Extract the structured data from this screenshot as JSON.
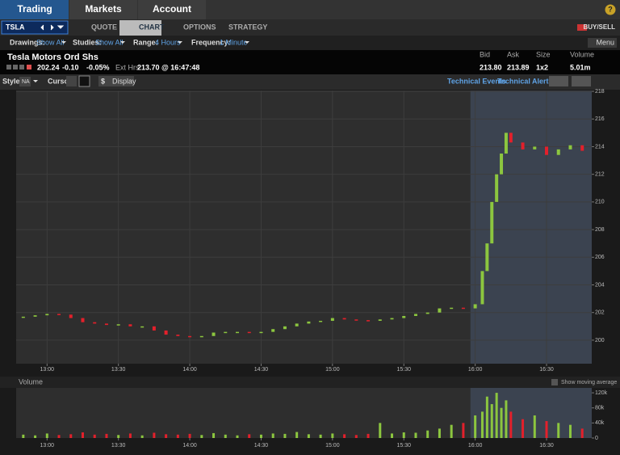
{
  "nav": {
    "tabs": [
      "Trading",
      "Markets",
      "Account"
    ],
    "help": "?"
  },
  "toolbar": {
    "symbol": "TSLA",
    "views": [
      "QUOTE",
      "CHART",
      "OPTIONS",
      "STRATEGY"
    ],
    "buy_sell": "BUY/SELL"
  },
  "settings": {
    "items": [
      {
        "label": "Drawings:",
        "value": "Show All"
      },
      {
        "label": "Studies:",
        "value": "Show All"
      },
      {
        "label": "Range:",
        "value": "4 Hours"
      },
      {
        "label": "Frequency:",
        "value": "1 Minute"
      }
    ],
    "menu": "Menu"
  },
  "quote": {
    "name": "Tesla Motors Ord Shs",
    "last": "202.24",
    "change": "-0.10",
    "change_pct": "-0.05%",
    "ext_label": "Ext Hrs",
    "ext_value": "213.70 @ 16:47:48",
    "columns": [
      "Bid",
      "Ask",
      "Size",
      "Volume"
    ],
    "values": [
      "213.80",
      "213.89",
      "1x2",
      "5.01m"
    ]
  },
  "chart_tools": {
    "style_label": "Style:",
    "style_value": "NA",
    "cursor_label": "Cursor:",
    "display_icon": "$",
    "display": "Display",
    "links": [
      "Technical Events",
      "Technical Alerts"
    ]
  },
  "chart_data": [
    {
      "type": "candlestick",
      "up_color": "#8cc63f",
      "down_color": "#e3202b",
      "grid": true,
      "shade_xlim": [
        958,
        1009
      ],
      "x": [
        770,
        775,
        780,
        785,
        790,
        795,
        800,
        805,
        810,
        815,
        820,
        825,
        830,
        835,
        840,
        845,
        850,
        855,
        860,
        865,
        870,
        875,
        880,
        885,
        890,
        895,
        900,
        905,
        910,
        915,
        920,
        925,
        930,
        935,
        940,
        945,
        950,
        955,
        960,
        963,
        965,
        967,
        969,
        971,
        973,
        975,
        980,
        985,
        990,
        995,
        1000,
        1005
      ],
      "values": [
        201.7,
        201.8,
        201.9,
        201.85,
        201.6,
        201.3,
        201.2,
        201.1,
        201.15,
        201.0,
        201.0,
        200.7,
        200.4,
        200.3,
        200.25,
        200.3,
        200.55,
        200.6,
        200.6,
        200.55,
        200.6,
        200.8,
        201.0,
        201.2,
        201.35,
        201.4,
        201.6,
        201.5,
        201.45,
        201.4,
        201.5,
        201.6,
        201.75,
        201.9,
        202.0,
        202.3,
        202.35,
        202.3,
        202.6,
        205,
        207,
        210,
        212,
        213.5,
        215,
        214.3,
        213.8,
        214.0,
        213.4,
        213.8,
        214.1,
        213.7
      ],
      "xlim": [
        767,
        1009
      ],
      "ylim": [
        198.3,
        218.06
      ],
      "yticks": [
        200,
        202,
        204,
        206,
        208,
        210,
        212,
        214,
        216,
        218
      ],
      "xticks": [
        {
          "value": 780,
          "label": "13:00"
        },
        {
          "value": 810,
          "label": "13:30"
        },
        {
          "value": 840,
          "label": "14:00"
        },
        {
          "value": 870,
          "label": "14:30"
        },
        {
          "value": 900,
          "label": "15:00"
        },
        {
          "value": 930,
          "label": "15:30"
        },
        {
          "value": 960,
          "label": "16:00"
        },
        {
          "value": 990,
          "label": "16:30"
        }
      ]
    },
    {
      "type": "bar",
      "title": "Volume",
      "option": "Show moving average",
      "up_color": "#8cc63f",
      "down_color": "#e3202b",
      "shade_xlim": [
        958,
        1009
      ],
      "x": [
        770,
        775,
        780,
        785,
        790,
        795,
        800,
        805,
        810,
        815,
        820,
        825,
        830,
        835,
        840,
        845,
        850,
        855,
        860,
        865,
        870,
        875,
        880,
        885,
        890,
        895,
        900,
        905,
        910,
        915,
        920,
        925,
        930,
        935,
        940,
        945,
        950,
        955,
        960,
        963,
        965,
        967,
        969,
        971,
        973,
        975,
        980,
        985,
        990,
        995,
        1000,
        1005
      ],
      "values": [
        9000,
        7000,
        12000,
        8000,
        10000,
        15000,
        9000,
        11000,
        8000,
        12000,
        7000,
        14000,
        10000,
        9000,
        11000,
        8000,
        13000,
        9000,
        7000,
        10000,
        9000,
        12000,
        11000,
        16000,
        10000,
        9000,
        12000,
        10000,
        8000,
        11000,
        40000,
        12000,
        15000,
        14000,
        20000,
        25000,
        35000,
        40000,
        60000,
        70000,
        110000,
        90000,
        120000,
        80000,
        100000,
        70000,
        50000,
        60000,
        45000,
        40000,
        35000,
        25000
      ],
      "xlim": [
        767,
        1009
      ],
      "ylim": [
        0,
        133000
      ],
      "yticks": [
        0,
        {
          "value": 40000,
          "label": "40k"
        },
        {
          "value": 80000,
          "label": "80k"
        },
        {
          "value": 120000,
          "label": "120k"
        }
      ],
      "xticks": [
        {
          "value": 780,
          "label": "13:00"
        },
        {
          "value": 810,
          "label": "13:30"
        },
        {
          "value": 840,
          "label": "14:00"
        },
        {
          "value": 870,
          "label": "14:30"
        },
        {
          "value": 900,
          "label": "15:00"
        },
        {
          "value": 930,
          "label": "15:30"
        },
        {
          "value": 960,
          "label": "16:00"
        },
        {
          "value": 990,
          "label": "16:30"
        }
      ]
    }
  ]
}
